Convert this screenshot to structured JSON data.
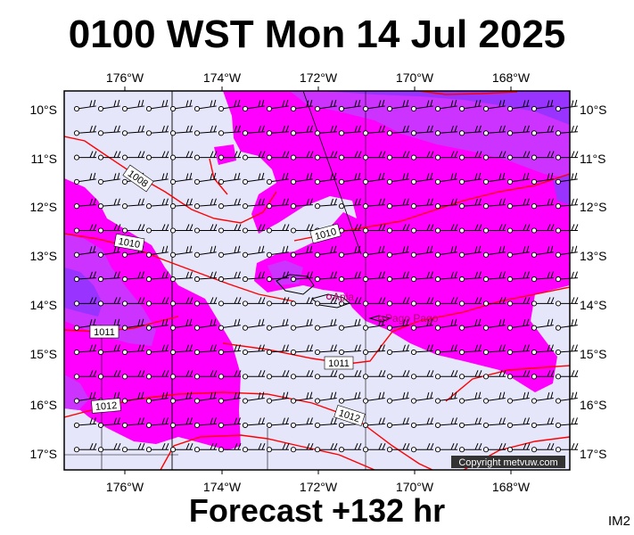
{
  "title": "0100 WST Mon 14 Jul 2025",
  "subtitle": "Forecast +132 hr",
  "product_code": "IM2",
  "copyright": "Copyright metvuw.com",
  "colors": {
    "background_low": "#e6e6fa",
    "band_magenta": "#ff00ff",
    "band_purple": "#cc33ff",
    "band_violet": "#9933ff",
    "band_deep": "#7a2bff",
    "isobar": "#ff0000",
    "place_marker": "#b0006a"
  },
  "axes": {
    "lon_ticks": [
      "176°W",
      "174°W",
      "172°W",
      "170°W",
      "168°W"
    ],
    "lat_ticks": [
      "10°S",
      "11°S",
      "12°S",
      "13°S",
      "14°S",
      "15°S",
      "16°S",
      "17°S"
    ]
  },
  "isobar_labels": [
    "1008",
    "1010",
    "1010",
    "1011",
    "1011",
    "1012",
    "1012"
  ],
  "places": [
    {
      "name": "Apia"
    },
    {
      "name": "Pago Pago"
    }
  ]
}
